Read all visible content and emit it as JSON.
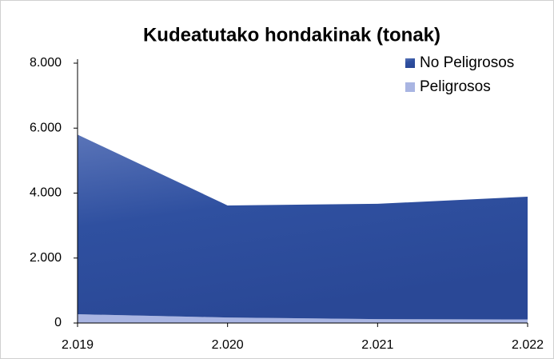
{
  "chart_data": {
    "type": "area",
    "stacked": true,
    "title": "Kudeatutako hondakinak (tonak)",
    "categories": [
      "2.019",
      "2.020",
      "2.021",
      "2.022"
    ],
    "series": [
      {
        "name": "Peligrosos",
        "color": "#a9b5e2",
        "values": [
          270,
          170,
          120,
          110
        ]
      },
      {
        "name": "No Peligrosos",
        "color": "#2f50a0",
        "values": [
          5530,
          3450,
          3550,
          3780
        ]
      }
    ],
    "ylim": [
      0,
      8000
    ],
    "yticks": [
      {
        "value": 0,
        "label": "0"
      },
      {
        "value": 2000,
        "label": "2.000"
      },
      {
        "value": 4000,
        "label": "4.000"
      },
      {
        "value": 6000,
        "label": "6.000"
      },
      {
        "value": 8000,
        "label": "8.000"
      }
    ],
    "grid": false,
    "legend": "top-right"
  }
}
